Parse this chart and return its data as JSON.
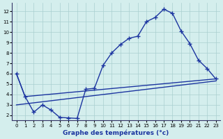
{
  "title": "Graphe des températures (°c)",
  "background_color": "#d4eeed",
  "grid_color": "#aacfcf",
  "line_color": "#1c35a0",
  "xlim": [
    -0.5,
    23.5
  ],
  "ylim": [
    1.5,
    12.8
  ],
  "xticks": [
    0,
    1,
    2,
    3,
    4,
    5,
    6,
    7,
    8,
    9,
    10,
    11,
    12,
    13,
    14,
    15,
    16,
    17,
    18,
    19,
    20,
    21,
    22,
    23
  ],
  "yticks": [
    2,
    3,
    4,
    5,
    6,
    7,
    8,
    9,
    10,
    11,
    12
  ],
  "line1_x": [
    0,
    1,
    2,
    3,
    4,
    5,
    6,
    7,
    8,
    9,
    10,
    11,
    12,
    13,
    14,
    15,
    16,
    17,
    18,
    19,
    20,
    21,
    22,
    23
  ],
  "line1_y": [
    6.0,
    3.8,
    2.3,
    3.0,
    2.5,
    1.8,
    1.75,
    1.7,
    4.5,
    4.6,
    6.8,
    8.0,
    8.8,
    9.4,
    9.6,
    11.0,
    11.4,
    12.2,
    11.8,
    10.1,
    8.9,
    7.3,
    6.5,
    5.5
  ],
  "line2_x": [
    0,
    1,
    23
  ],
  "line2_y": [
    6.0,
    3.8,
    5.5
  ],
  "line3_x": [
    0,
    23
  ],
  "line3_y": [
    3.0,
    5.3
  ],
  "marker": "+",
  "markersize": 4,
  "linewidth": 1.0,
  "xlabel_fontsize": 6.5,
  "tick_fontsize": 5.0
}
